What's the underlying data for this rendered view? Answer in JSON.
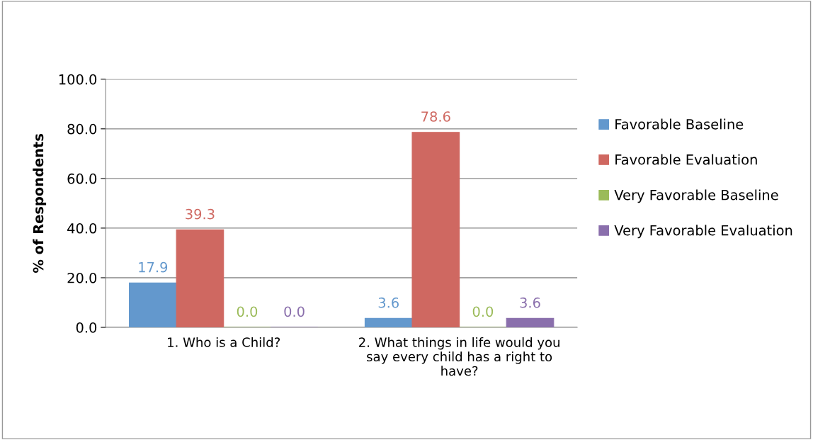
{
  "chart_data": {
    "type": "bar",
    "ylabel": "% of Respondents",
    "categories": [
      "1. Who is a Child?",
      "2. What things in life would you say every child has a right to have?"
    ],
    "series": [
      {
        "name": "Favorable Baseline",
        "color": "#6398cd",
        "values": [
          17.9,
          3.6
        ],
        "value_labels": [
          "17.9",
          "3.6"
        ]
      },
      {
        "name": "Favorable Evaluation",
        "color": "#cf6861",
        "values": [
          39.3,
          78.6
        ],
        "value_labels": [
          "39.3",
          "78.6"
        ]
      },
      {
        "name": "Very Favorable Baseline",
        "color": "#9bbb59",
        "values": [
          0,
          0
        ],
        "value_labels": [
          "0.0",
          "0.0"
        ]
      },
      {
        "name": "Very Favorable Evaluation",
        "color": "#8a6fac",
        "values": [
          0,
          3.6
        ],
        "value_labels": [
          "0.0",
          "3.6"
        ]
      }
    ],
    "ylim": [
      0,
      100
    ],
    "yticks": [
      {
        "value": 0,
        "label": "0.0"
      },
      {
        "value": 20,
        "label": "20.0"
      },
      {
        "value": 40,
        "label": "40.0"
      },
      {
        "value": 60,
        "label": "60.0"
      },
      {
        "value": 80,
        "label": "80.0"
      },
      {
        "value": 100,
        "label": "100.0"
      }
    ],
    "grid": "y",
    "legend": "right"
  }
}
